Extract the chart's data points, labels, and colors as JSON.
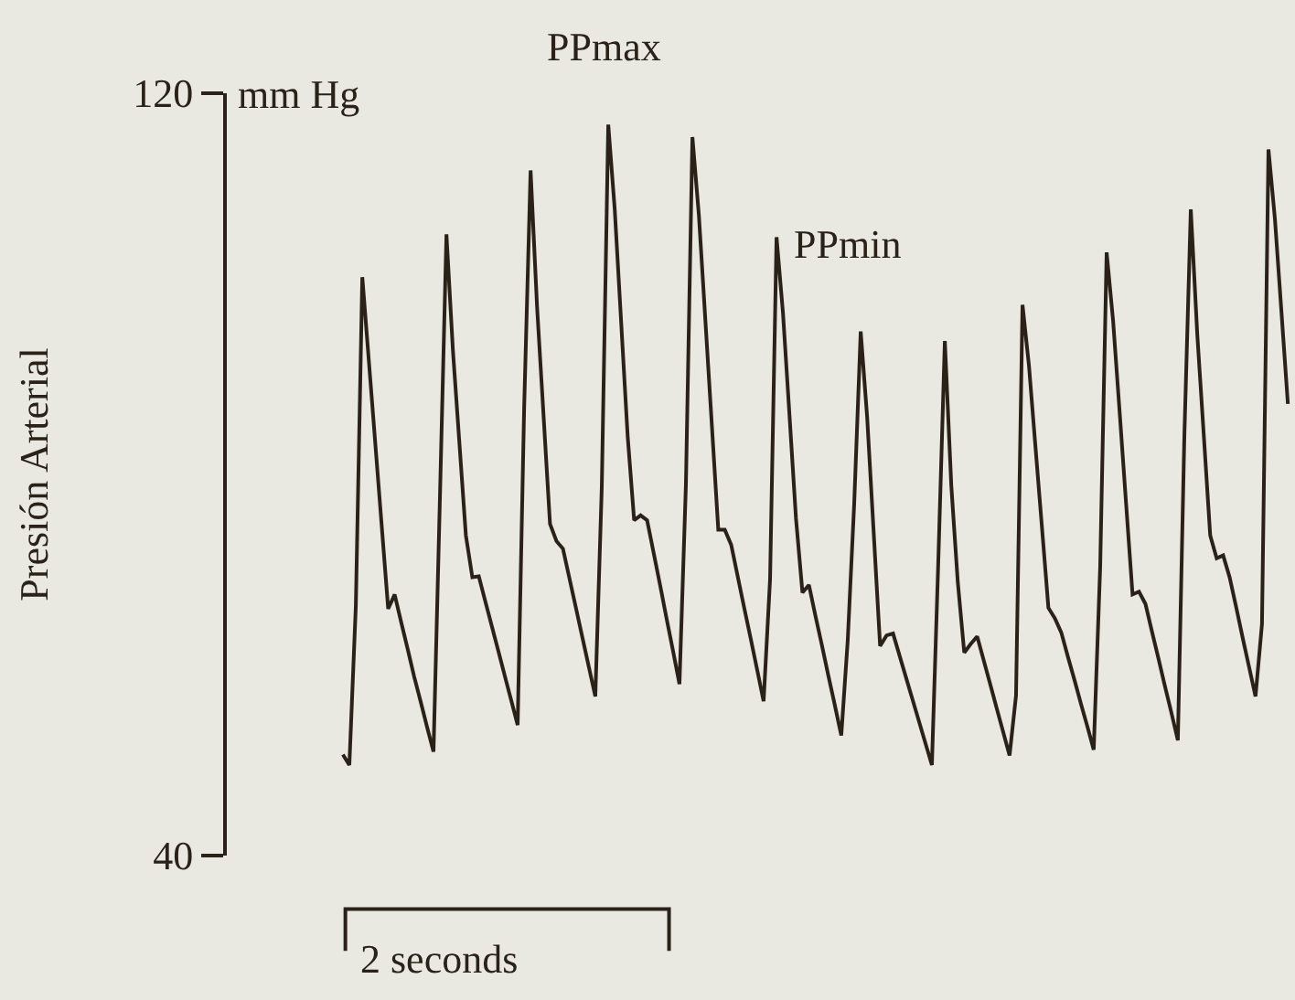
{
  "chart_data": {
    "type": "line",
    "ylabel": "Presión Arterial",
    "tick_labels": "y",
    "categories": [
      null,
      null,
      null,
      null,
      null,
      null,
      null,
      null,
      null,
      null,
      null,
      null,
      null,
      null,
      null,
      null,
      null,
      null,
      null,
      null,
      null,
      null,
      null,
      null,
      null,
      null,
      null,
      null,
      null,
      null,
      null,
      null,
      null,
      null,
      null,
      null,
      null,
      null,
      null,
      null,
      null,
      null,
      null,
      null,
      null,
      null,
      null,
      null,
      null,
      null,
      null,
      null,
      null,
      null,
      null,
      null,
      null,
      null,
      null,
      null,
      null,
      null,
      null,
      null,
      null,
      null,
      null,
      null,
      null,
      null,
      null,
      null,
      null,
      null,
      null,
      null,
      null,
      null,
      null,
      null,
      null,
      null,
      null,
      null,
      null,
      null,
      null,
      null,
      null,
      null,
      null,
      null,
      null,
      null,
      null,
      null,
      null,
      null,
      null,
      null,
      null,
      null,
      null,
      null,
      null,
      null,
      null,
      null,
      null,
      null,
      null,
      null,
      null,
      null,
      null,
      null,
      null,
      null,
      null,
      null,
      null,
      null,
      null,
      null,
      null,
      null,
      null,
      null,
      null,
      null,
      null,
      null,
      null,
      null,
      null,
      null,
      null,
      null,
      null,
      null,
      null,
      null,
      null,
      null,
      null,
      null,
      null
    ],
    "series": [
      {
        "color": "#2a2218",
        "values": [
          50.6,
          49.5,
          66.2,
          100.7,
          92.0,
          83.3,
          74.6,
          65.9,
          67.4,
          64.5,
          61.7,
          58.8,
          56.2,
          53.5,
          50.9,
          77.7,
          105.2,
          93.0,
          83.3,
          73.6,
          69.2,
          69.3,
          66.7,
          64.1,
          61.5,
          58.9,
          56.3,
          53.7,
          86.9,
          111.9,
          97.6,
          86.2,
          74.8,
          73.0,
          72.2,
          69.1,
          66.0,
          62.9,
          59.8,
          56.7,
          78.7,
          116.7,
          107.8,
          95.9,
          84.0,
          75.2,
          75.7,
          75.2,
          71.8,
          68.4,
          64.9,
          61.5,
          58.0,
          79.0,
          115.4,
          107.2,
          96.2,
          85.2,
          74.2,
          74.2,
          72.6,
          69.3,
          66.0,
          62.8,
          59.5,
          56.2,
          69.0,
          104.9,
          96.9,
          86.2,
          75.4,
          67.6,
          68.4,
          65.2,
          62.1,
          58.9,
          55.8,
          52.6,
          62.6,
          77.0,
          95.0,
          86.0,
          74.0,
          62.0,
          63.1,
          63.3,
          61.0,
          58.7,
          56.4,
          54.1,
          51.8,
          49.5,
          71.1,
          94.0,
          78.8,
          68.7,
          61.3,
          62.2,
          63.0,
          60.5,
          58.0,
          55.5,
          53.0,
          50.5,
          56.8,
          97.8,
          91.4,
          82.9,
          74.5,
          66.0,
          64.9,
          63.4,
          60.9,
          58.5,
          56.0,
          53.6,
          51.1,
          70.3,
          103.3,
          96.1,
          86.6,
          77.0,
          67.4,
          67.7,
          66.4,
          63.5,
          60.7,
          57.8,
          55.0,
          52.1,
          83.9,
          107.8,
          94.7,
          84.2,
          73.6,
          71.2,
          71.5,
          69.2,
          66.1,
          62.9,
          59.8,
          56.7,
          64.3,
          114.1,
          106.8,
          97.1,
          87.4
        ]
      }
    ],
    "ylim": [
      40,
      120
    ],
    "yticks": [
      40,
      120
    ],
    "annotations": [
      "mm Hg",
      "PPmax",
      "PPmin",
      "2 seconds"
    ]
  }
}
